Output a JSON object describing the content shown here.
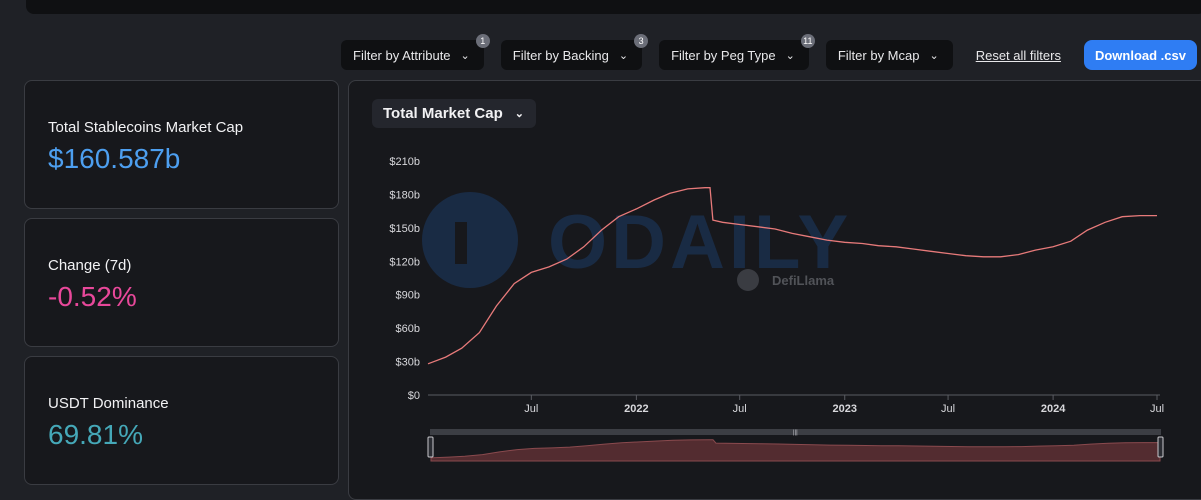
{
  "filters": [
    {
      "label": "Filter by Attribute",
      "badge": "1"
    },
    {
      "label": "Filter by Backing",
      "badge": "3"
    },
    {
      "label": "Filter by Peg Type",
      "badge": "11"
    },
    {
      "label": "Filter by Mcap",
      "badge": ""
    }
  ],
  "reset_label": "Reset all filters",
  "download_label": "Download .csv",
  "stats": [
    {
      "label": "Total Stablecoins Market Cap",
      "value": "$160.587b",
      "color": "#4d9ff0"
    },
    {
      "label": "Change (7d)",
      "value": "-0.52%",
      "color": "#e8489a"
    },
    {
      "label": "USDT Dominance",
      "value": "69.81%",
      "color": "#45a8b8"
    }
  ],
  "metric_selector": "Total Market Cap",
  "watermark": {
    "text": "ODAILY",
    "brand": "DefiLlama"
  },
  "colors": {
    "line": "#e77a7a",
    "accent": "#2f7df3"
  },
  "chart_data": {
    "type": "line",
    "ylim": [
      0,
      210
    ],
    "y_ticks": [
      "$0",
      "$30b",
      "$60b",
      "$90b",
      "$120b",
      "$150b",
      "$180b",
      "$210b"
    ],
    "x_ticks": [
      {
        "label": "Jul",
        "date": "2021-07-01",
        "bold": false
      },
      {
        "label": "2022",
        "date": "2022-01-01",
        "bold": true
      },
      {
        "label": "Jul",
        "date": "2022-07-01",
        "bold": false
      },
      {
        "label": "2023",
        "date": "2023-01-01",
        "bold": true
      },
      {
        "label": "Jul",
        "date": "2023-07-01",
        "bold": false
      },
      {
        "label": "2024",
        "date": "2024-01-01",
        "bold": true
      },
      {
        "label": "Jul",
        "date": "2024-07-01",
        "bold": false
      }
    ],
    "xlim": [
      "2021-01-01",
      "2024-07-01"
    ],
    "series": [
      {
        "x": [
          "2021-01-01",
          "2021-02-01",
          "2021-03-01",
          "2021-04-01",
          "2021-05-01",
          "2021-06-01",
          "2021-07-01",
          "2021-08-01",
          "2021-09-01",
          "2021-10-01",
          "2021-11-01",
          "2021-12-01",
          "2022-01-01",
          "2022-02-01",
          "2022-03-01",
          "2022-04-01",
          "2022-05-01",
          "2022-05-10",
          "2022-05-15",
          "2022-06-01",
          "2022-07-01",
          "2022-08-01",
          "2022-09-01",
          "2022-10-01",
          "2022-11-01",
          "2022-12-01",
          "2023-01-01",
          "2023-02-01",
          "2023-03-01",
          "2023-04-01",
          "2023-05-01",
          "2023-06-01",
          "2023-07-01",
          "2023-08-01",
          "2023-09-01",
          "2023-10-01",
          "2023-11-01",
          "2023-12-01",
          "2024-01-01",
          "2024-02-01",
          "2024-03-01",
          "2024-04-01",
          "2024-05-01",
          "2024-06-01",
          "2024-07-01"
        ],
        "values": [
          28,
          34,
          42,
          56,
          80,
          100,
          110,
          115,
          122,
          133,
          148,
          160,
          167,
          175,
          181,
          185,
          186,
          186,
          157,
          155,
          153,
          151,
          149,
          145,
          142,
          139,
          137,
          136,
          134,
          133,
          131,
          129,
          127,
          125,
          124,
          124,
          126,
          130,
          133,
          138,
          148,
          155,
          160,
          161,
          161
        ]
      }
    ]
  }
}
